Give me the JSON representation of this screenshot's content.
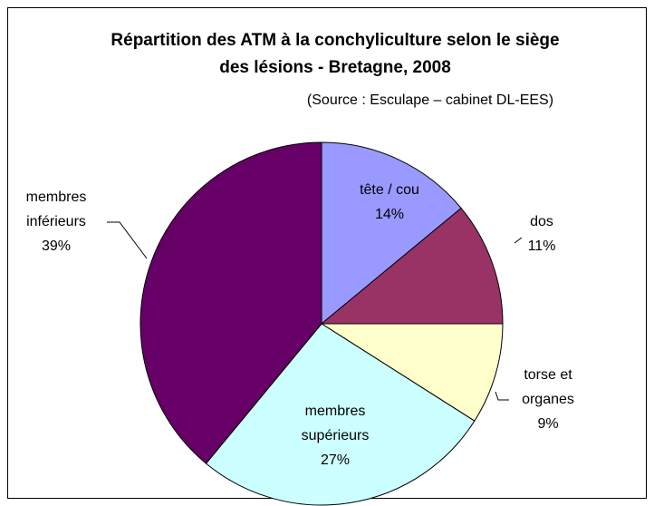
{
  "chart_data": {
    "type": "pie",
    "title": "Répartition des ATM à la conchyliculture selon le siège des lésions - Bretagne, 2008",
    "subtitle": "(Source : Esculape – cabinet DL-EES)",
    "categories": [
      "tête / cou",
      "dos",
      "torse et organes",
      "membres supérieurs",
      "membres inférieurs"
    ],
    "values": [
      14,
      11,
      9,
      27,
      39
    ],
    "value_labels": [
      "14%",
      "11%",
      "9%",
      "27%",
      "39%"
    ],
    "colors": [
      "#9999ff",
      "#993366",
      "#ffffcc",
      "#ccffff",
      "#660066"
    ]
  }
}
